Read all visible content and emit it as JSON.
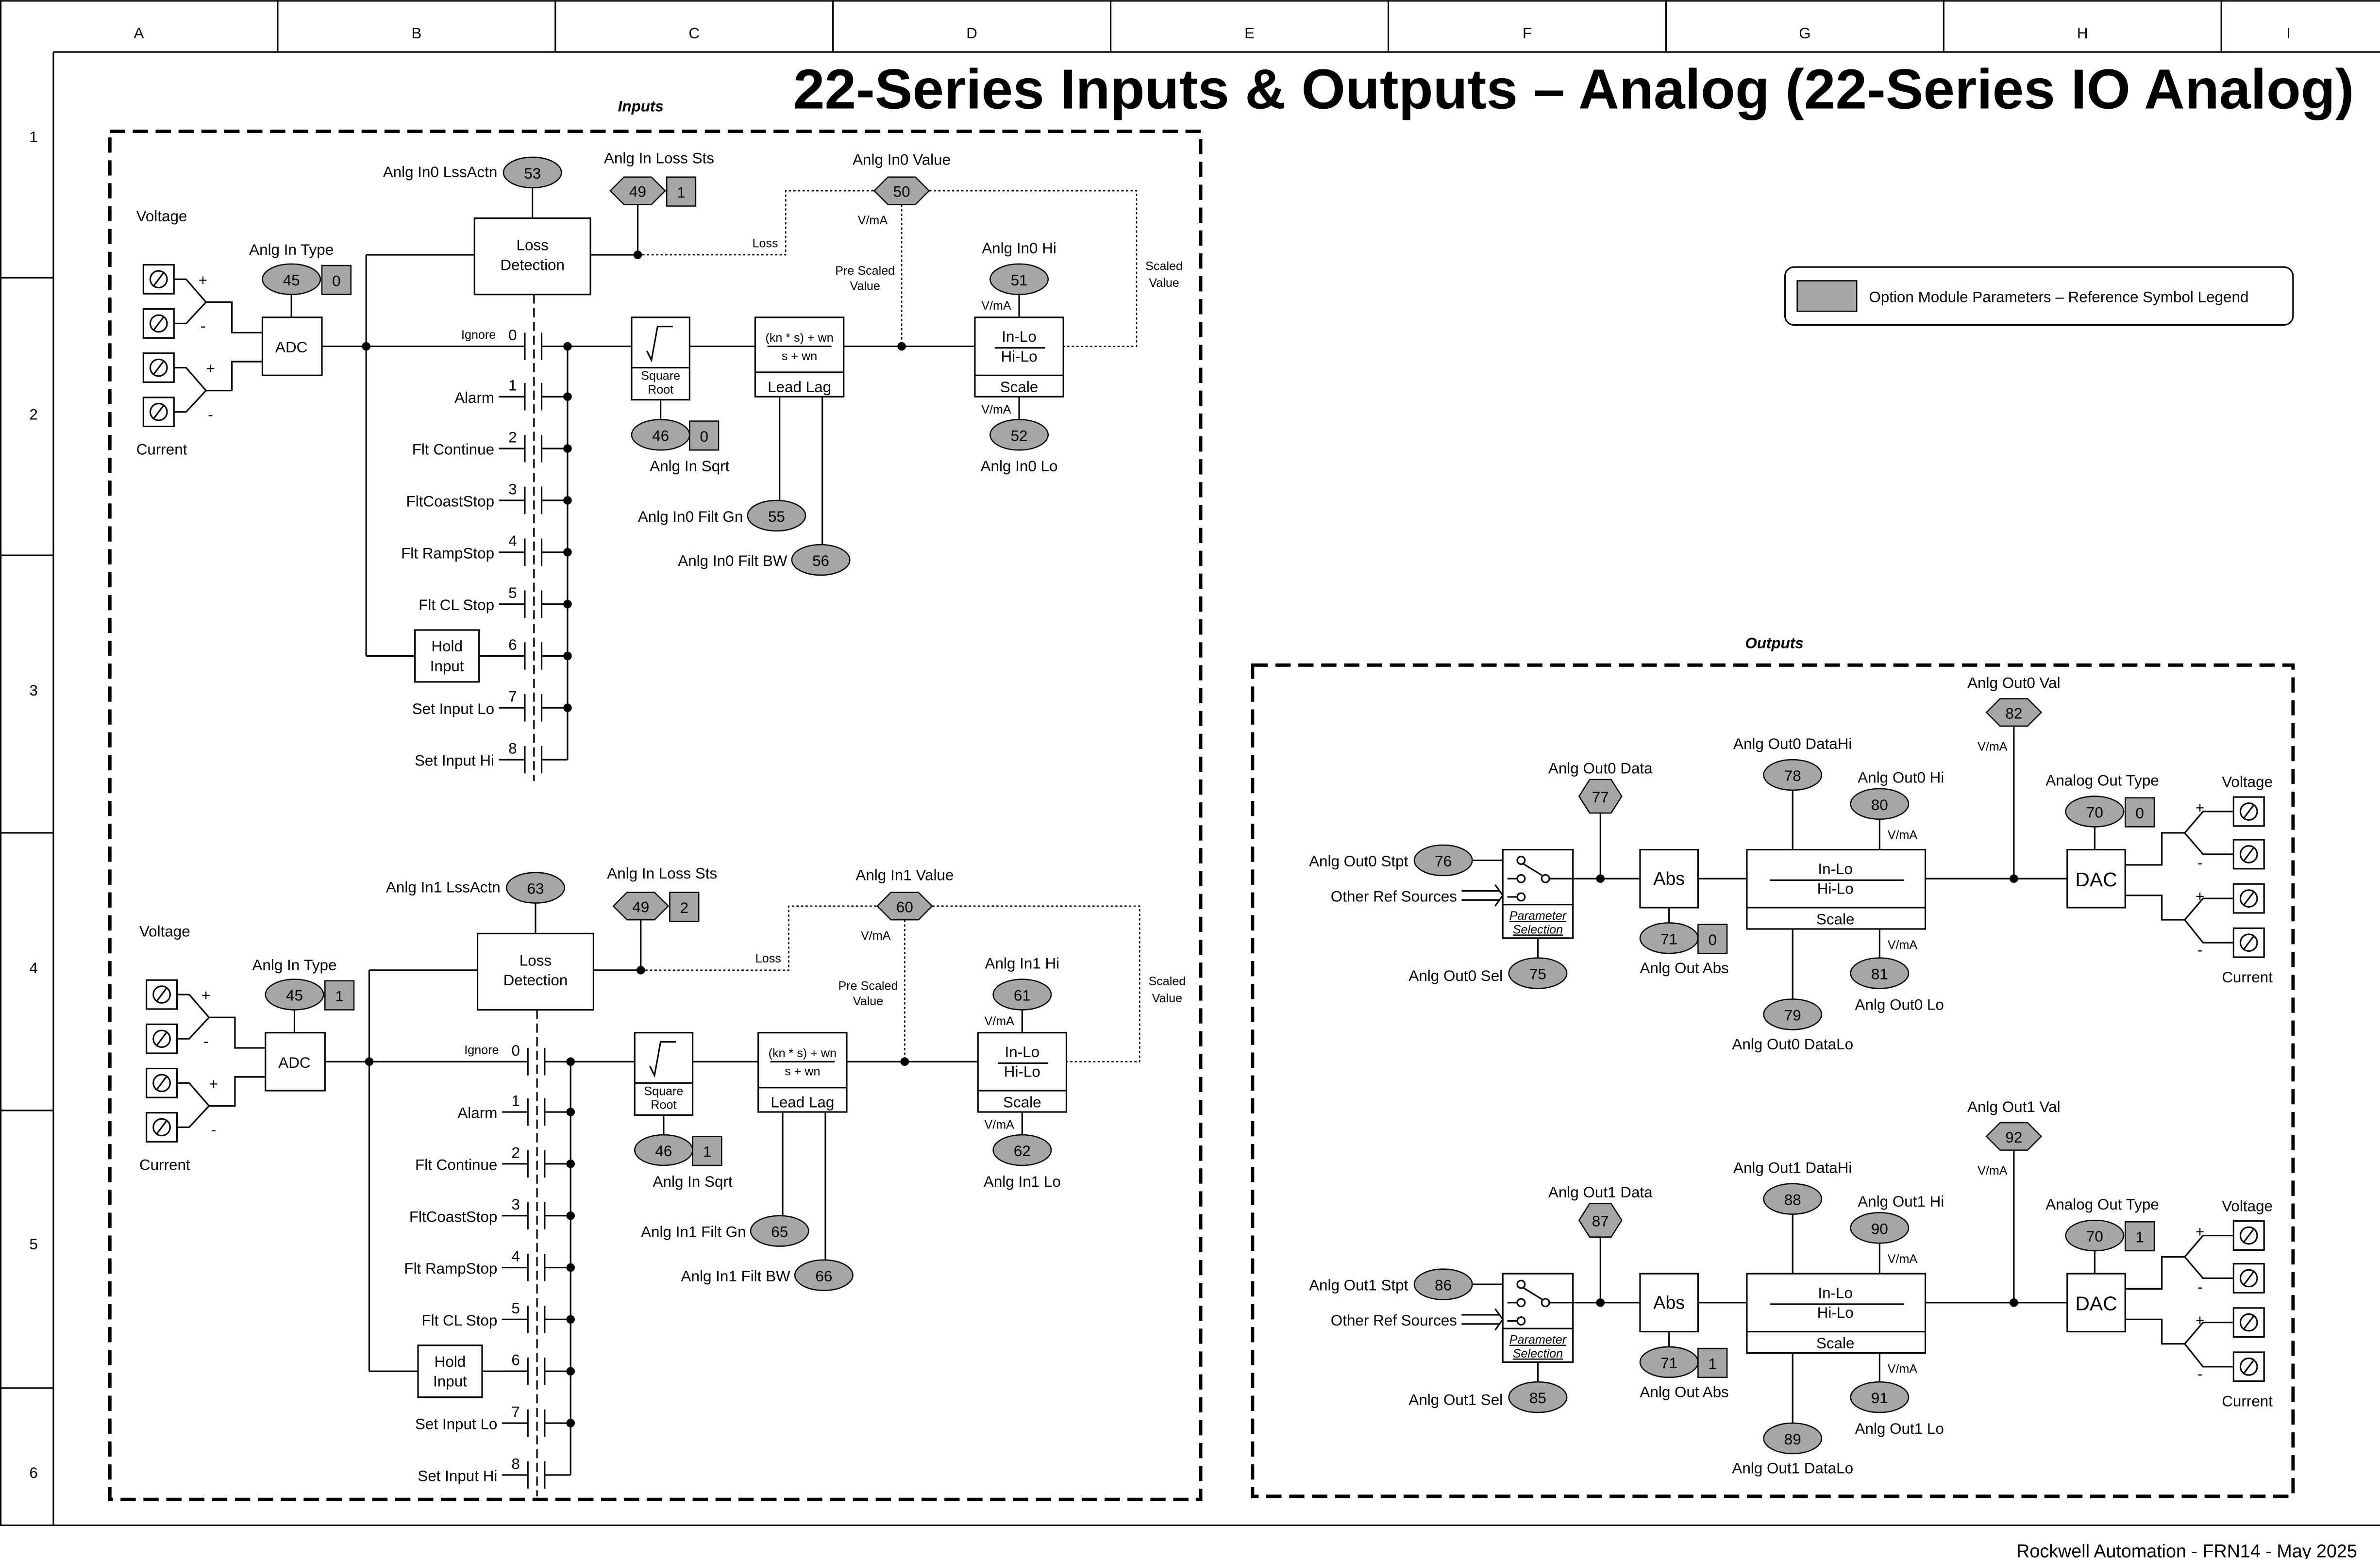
{
  "title": "22-Series Inputs & Outputs – Analog (22-Series IO Analog)",
  "footer": "Rockwell Automation - FRN14 - May 2025",
  "grid": {
    "columns": [
      "A",
      "B",
      "C",
      "D",
      "E",
      "F",
      "G",
      "H",
      "I"
    ],
    "rows": [
      "1",
      "2",
      "3",
      "4",
      "5",
      "6"
    ]
  },
  "colors": {
    "parameter_fill": "#a6a6a6",
    "line": "#000000"
  },
  "legend": {
    "text": "Option Module Parameters – Reference Symbol Legend"
  },
  "inputs": {
    "section_label": "Inputs",
    "common": {
      "voltage": "Voltage",
      "current": "Current",
      "plus": "+",
      "minus": "-",
      "adc": "ADC",
      "loss_detection": [
        "Loss",
        "Detection"
      ],
      "loss": "Loss",
      "pre_scaled": [
        "Pre Scaled",
        "Value"
      ],
      "scaled": [
        "Scaled",
        "Value"
      ],
      "vma": "V/mA",
      "square_root": [
        "Square",
        "Root"
      ],
      "lead_lag_num": "(kn * s) + wn",
      "lead_lag_den": "s + wn",
      "lead_lag": "Lead Lag",
      "in_lo": "In-Lo",
      "hi_lo": "Hi-Lo",
      "scale": "Scale",
      "hold_input": [
        "Hold",
        "Input"
      ]
    },
    "actions": [
      {
        "num": "0",
        "label": "Ignore"
      },
      {
        "num": "1",
        "label": "Alarm"
      },
      {
        "num": "2",
        "label": "Flt Continue"
      },
      {
        "num": "3",
        "label": "FltCoastStop"
      },
      {
        "num": "4",
        "label": "Flt RampStop"
      },
      {
        "num": "5",
        "label": "Flt CL Stop"
      },
      {
        "num": "6"
      },
      {
        "num": "7",
        "label": "Set Input Lo"
      },
      {
        "num": "8",
        "label": "Set Input Hi"
      }
    ],
    "channels": [
      {
        "type": {
          "label": "Anlg In Type",
          "param": "45",
          "value": "0"
        },
        "loss_action": {
          "label": "Anlg In0 LssActn",
          "param": "53"
        },
        "loss_status": {
          "label": "Anlg In Loss Sts",
          "param": "49",
          "value": "1"
        },
        "value": {
          "label": "Anlg In0 Value",
          "param": "50"
        },
        "sqrt": {
          "label": "Anlg In Sqrt",
          "param": "46",
          "value": "0"
        },
        "filt_gn": {
          "label": "Anlg In0 Filt Gn",
          "param": "55"
        },
        "filt_bw": {
          "label": "Anlg In0 Filt BW",
          "param": "56"
        },
        "hi": {
          "label": "Anlg In0 Hi",
          "param": "51"
        },
        "lo": {
          "label": "Anlg In0 Lo",
          "param": "52"
        }
      },
      {
        "type": {
          "label": "Anlg In Type",
          "param": "45",
          "value": "1"
        },
        "loss_action": {
          "label": "Anlg In1 LssActn",
          "param": "63"
        },
        "loss_status": {
          "label": "Anlg In Loss Sts",
          "param": "49",
          "value": "2"
        },
        "value": {
          "label": "Anlg In1 Value",
          "param": "60"
        },
        "sqrt": {
          "label": "Anlg In Sqrt",
          "param": "46",
          "value": "1"
        },
        "filt_gn": {
          "label": "Anlg In1 Filt Gn",
          "param": "65"
        },
        "filt_bw": {
          "label": "Anlg In1 Filt BW",
          "param": "66"
        },
        "hi": {
          "label": "Anlg In1 Hi",
          "param": "61"
        },
        "lo": {
          "label": "Anlg In1 Lo",
          "param": "62"
        }
      }
    ]
  },
  "outputs": {
    "section_label": "Outputs",
    "common": {
      "other_ref": "Other Ref Sources",
      "param_selection": [
        "Parameter",
        "Selection"
      ],
      "abs": "Abs",
      "in_lo": "In-Lo",
      "hi_lo": "Hi-Lo",
      "scale": "Scale",
      "vma": "V/mA",
      "dac": "DAC",
      "voltage": "Voltage",
      "current": "Current",
      "plus": "+",
      "minus": "-"
    },
    "channels": [
      {
        "stpt": {
          "label": "Anlg Out0 Stpt",
          "param": "76"
        },
        "sel": {
          "label": "Anlg Out0 Sel",
          "param": "75"
        },
        "data": {
          "label": "Anlg Out0 Data",
          "param": "77"
        },
        "abs": {
          "label": "Anlg Out Abs",
          "param": "71",
          "value": "0"
        },
        "data_hi": {
          "label": "Anlg Out0 DataHi",
          "param": "78"
        },
        "data_lo": {
          "label": "Anlg Out0 DataLo",
          "param": "79"
        },
        "hi": {
          "label": "Anlg Out0 Hi",
          "param": "80"
        },
        "lo": {
          "label": "Anlg Out0 Lo",
          "param": "81"
        },
        "val": {
          "label": "Anlg Out0 Val",
          "param": "82"
        },
        "type": {
          "label": "Analog Out Type",
          "param": "70",
          "value": "0"
        }
      },
      {
        "stpt": {
          "label": "Anlg Out1 Stpt",
          "param": "86"
        },
        "sel": {
          "label": "Anlg Out1 Sel",
          "param": "85"
        },
        "data": {
          "label": "Anlg Out1 Data",
          "param": "87"
        },
        "abs": {
          "label": "Anlg Out Abs",
          "param": "71",
          "value": "1"
        },
        "data_hi": {
          "label": "Anlg Out1 DataHi",
          "param": "88"
        },
        "data_lo": {
          "label": "Anlg Out1 DataLo",
          "param": "89"
        },
        "hi": {
          "label": "Anlg Out1 Hi",
          "param": "90"
        },
        "lo": {
          "label": "Anlg Out1 Lo",
          "param": "91"
        },
        "val": {
          "label": "Anlg Out1 Val",
          "param": "92"
        },
        "type": {
          "label": "Analog Out Type",
          "param": "70",
          "value": "1"
        }
      }
    ]
  }
}
